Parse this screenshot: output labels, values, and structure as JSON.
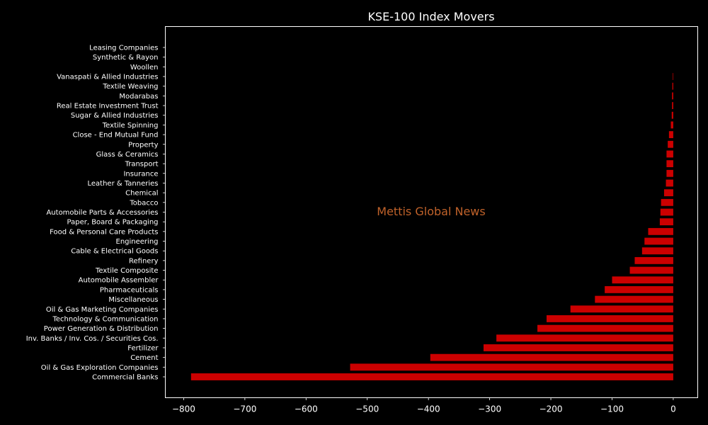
{
  "chart_data": {
    "type": "bar",
    "orientation": "horizontal",
    "title": "KSE-100 Index Movers",
    "watermark": "Mettis Global News",
    "xlim": [
      -830,
      40
    ],
    "xticks": [
      -800,
      -700,
      -600,
      -500,
      -400,
      -300,
      -200,
      -100,
      0
    ],
    "xtick_labels": [
      "−800",
      "−700",
      "−600",
      "−500",
      "−400",
      "−300",
      "−200",
      "−100",
      "0"
    ],
    "grid": false,
    "categories": [
      "Commercial Banks",
      "Oil & Gas Exploration Companies",
      "Cement",
      "Fertilizer",
      "Inv. Banks / Inv. Cos. / Securities Cos.",
      "Power Generation & Distribution",
      "Technology & Communication",
      "Oil & Gas Marketing Companies",
      "Miscellaneous",
      "Pharmaceuticals",
      "Automobile Assembler",
      "Textile Composite",
      "Refinery",
      "Cable & Electrical Goods",
      "Engineering",
      "Food & Personal Care Products",
      "Paper, Board & Packaging",
      "Automobile Parts & Accessories",
      "Tobacco",
      "Chemical",
      "Leather & Tanneries",
      "Insurance",
      "Transport",
      "Glass & Ceramics",
      "Property",
      "Close - End Mutual Fund",
      "Textile Spinning",
      "Sugar & Allied Industries",
      "Real Estate Investment Trust",
      "Modarabas",
      "Textile Weaving",
      "Vanaspati & Allied Industries",
      "Woollen",
      "Synthetic & Rayon",
      "Leasing Companies"
    ],
    "values": [
      -788,
      -528,
      -397,
      -310,
      -289,
      -222,
      -207,
      -168,
      -128,
      -112,
      -100,
      -71,
      -63,
      -51,
      -47,
      -41,
      -22,
      -21,
      -20,
      -15,
      -12,
      -11,
      -11,
      -11,
      -9,
      -7,
      -4,
      -2.5,
      -2,
      -2,
      -1.5,
      -0.8,
      0,
      0,
      0
    ],
    "bar_color": "#cc0000",
    "watermark_color": "#c0622a",
    "background": "#000000",
    "foreground": "#ffffff"
  }
}
